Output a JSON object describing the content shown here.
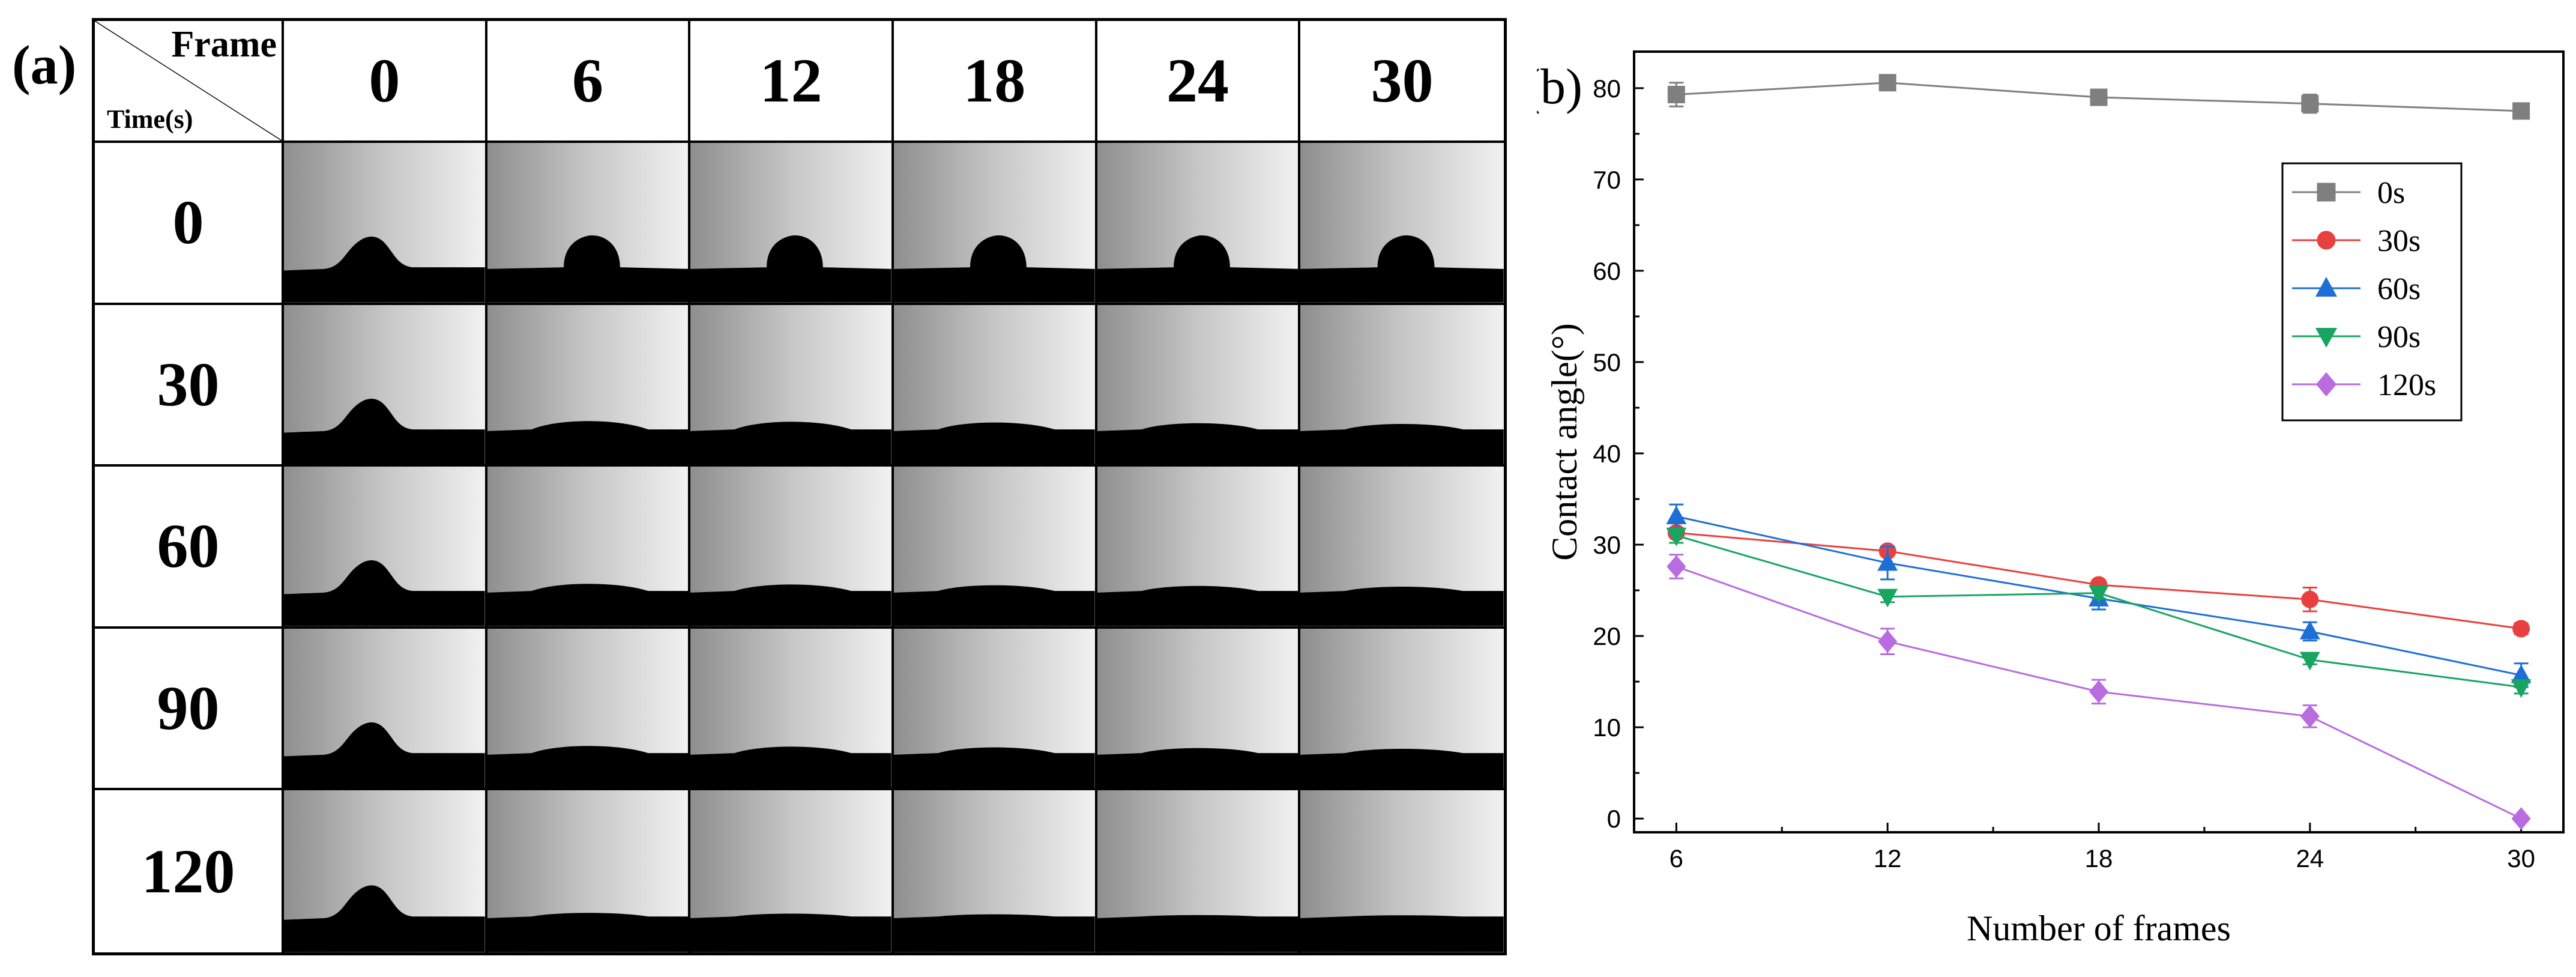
{
  "panel_a": {
    "label": "(a)",
    "corner_top": "Frame",
    "corner_bottom": "Time(s)",
    "frames": [
      "0",
      "6",
      "12",
      "18",
      "24",
      "30"
    ],
    "times": [
      "0",
      "30",
      "60",
      "90",
      "120"
    ]
  },
  "chart_data": {
    "type": "line",
    "panel_label": "(b)",
    "xlabel": "Number of frames",
    "ylabel": "Contact angle(°)",
    "x": [
      6,
      12,
      18,
      24,
      30
    ],
    "xticks": [
      "6",
      "12",
      "18",
      "24",
      "30"
    ],
    "yticks": [
      "0",
      "10",
      "20",
      "30",
      "40",
      "50",
      "60",
      "70",
      "80"
    ],
    "xlim": [
      4.8,
      31.2
    ],
    "ylim": [
      -1.5,
      84
    ],
    "grid": false,
    "legend_position": "top-right",
    "series": [
      {
        "name": "0s",
        "color": "#7f7f7f",
        "marker": "square",
        "values": [
          79.3,
          80.6,
          79.0,
          78.3,
          77.5
        ],
        "errors": [
          1.3,
          0.5,
          0.4,
          1.0,
          0.6
        ]
      },
      {
        "name": "30s",
        "color": "#e8403e",
        "marker": "circle",
        "values": [
          31.3,
          29.3,
          25.6,
          24.0,
          20.8
        ],
        "errors": [
          0.5,
          0.5,
          0.5,
          1.3,
          0.6
        ]
      },
      {
        "name": "60s",
        "color": "#1d6fd6",
        "marker": "triangle-up",
        "values": [
          33.1,
          28.0,
          24.1,
          20.5,
          15.7
        ],
        "errors": [
          1.3,
          1.8,
          1.2,
          1.0,
          1.3
        ]
      },
      {
        "name": "90s",
        "color": "#18a562",
        "marker": "triangle-down",
        "values": [
          31.0,
          24.3,
          24.7,
          17.4,
          14.4
        ],
        "errors": [
          0.8,
          0.6,
          0.6,
          0.5,
          0.7
        ]
      },
      {
        "name": "120s",
        "color": "#b86ce0",
        "marker": "diamond",
        "values": [
          27.6,
          19.4,
          13.9,
          11.2,
          0.0
        ],
        "errors": [
          1.3,
          1.4,
          1.3,
          1.2,
          0.3
        ]
      }
    ]
  }
}
